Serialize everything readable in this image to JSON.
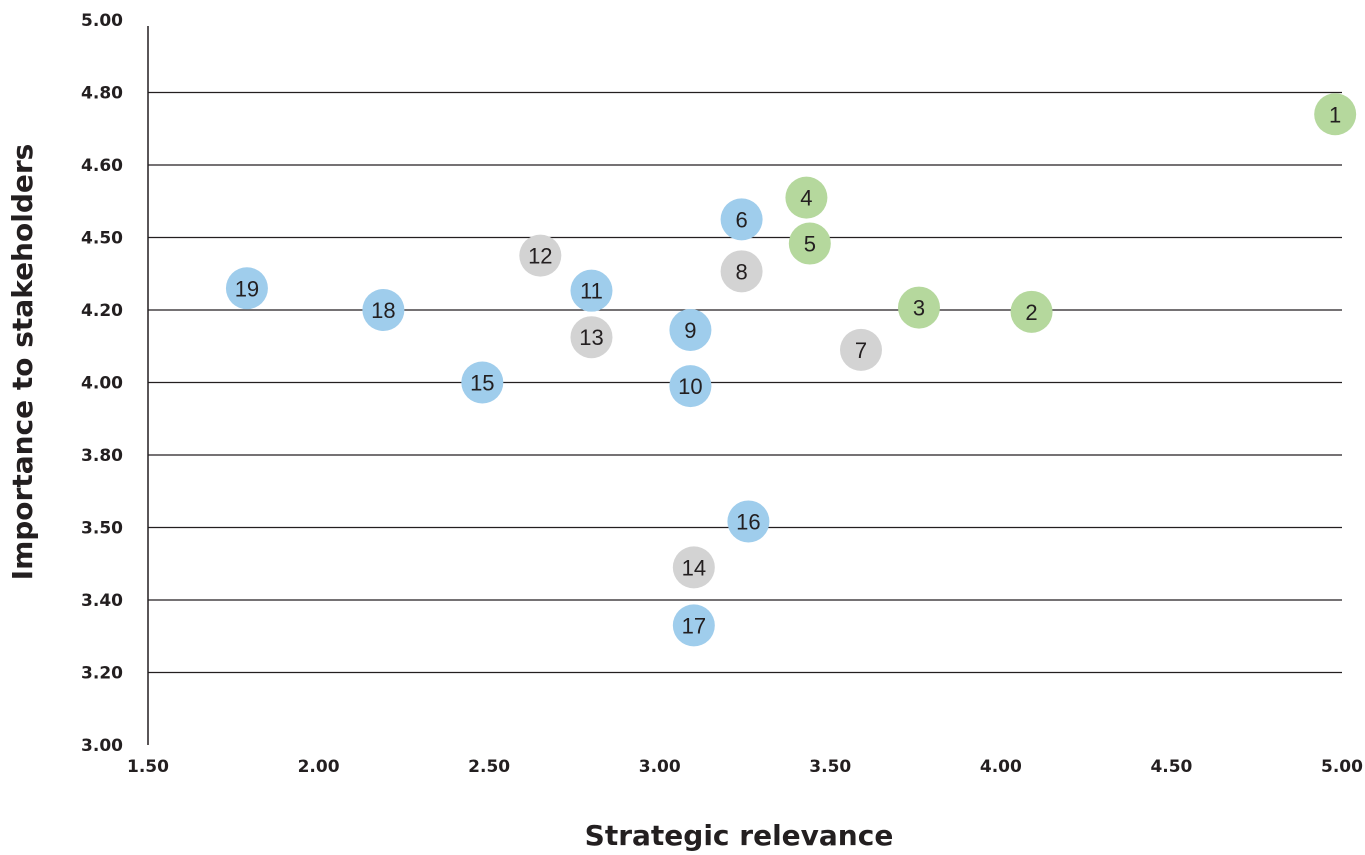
{
  "chart_data": {
    "type": "scatter",
    "xlabel": "Strategic relevance",
    "ylabel": "Importance to stakeholders",
    "x_ticks": [
      "1.50",
      "2.00",
      "2.50",
      "3.00",
      "3.50",
      "4.00",
      "4.50",
      "5.00"
    ],
    "y_ticks": [
      "3.00",
      "3.20",
      "3.40",
      "3.50",
      "3.80",
      "4.00",
      "4.20",
      "4.50",
      "4.60",
      "4.80",
      "5.00"
    ],
    "xlim": [
      1.5,
      5.0
    ],
    "grid": "horizontal",
    "colors": {
      "green": "#b5d89d",
      "blue": "#9fcdec",
      "grey": "#d3d3d3"
    },
    "points": [
      {
        "label": "1",
        "x": 4.98,
        "y": 4.74,
        "color": "green"
      },
      {
        "label": "2",
        "x": 4.09,
        "y": 4.195,
        "color": "green"
      },
      {
        "label": "3",
        "x": 3.76,
        "y": 4.21,
        "color": "green"
      },
      {
        "label": "4",
        "x": 3.43,
        "y": 4.555,
        "color": "green"
      },
      {
        "label": "5",
        "x": 3.44,
        "y": 4.475,
        "color": "green"
      },
      {
        "label": "6",
        "x": 3.24,
        "y": 4.525,
        "color": "blue"
      },
      {
        "label": "7",
        "x": 3.59,
        "y": 4.09,
        "color": "grey"
      },
      {
        "label": "8",
        "x": 3.24,
        "y": 4.36,
        "color": "grey"
      },
      {
        "label": "9",
        "x": 3.09,
        "y": 4.145,
        "color": "blue"
      },
      {
        "label": "10",
        "x": 3.09,
        "y": 3.99,
        "color": "blue"
      },
      {
        "label": "11",
        "x": 2.8,
        "y": 4.28,
        "color": "blue"
      },
      {
        "label": "12",
        "x": 2.65,
        "y": 4.425,
        "color": "grey"
      },
      {
        "label": "13",
        "x": 2.8,
        "y": 4.125,
        "color": "grey"
      },
      {
        "label": "14",
        "x": 3.1,
        "y": 3.445,
        "color": "grey"
      },
      {
        "label": "15",
        "x": 2.48,
        "y": 4.0,
        "color": "blue"
      },
      {
        "label": "16",
        "x": 3.26,
        "y": 3.525,
        "color": "blue"
      },
      {
        "label": "17",
        "x": 3.1,
        "y": 3.33,
        "color": "blue"
      },
      {
        "label": "18",
        "x": 2.19,
        "y": 4.2,
        "color": "blue"
      },
      {
        "label": "19",
        "x": 1.79,
        "y": 4.29,
        "color": "blue"
      }
    ]
  }
}
